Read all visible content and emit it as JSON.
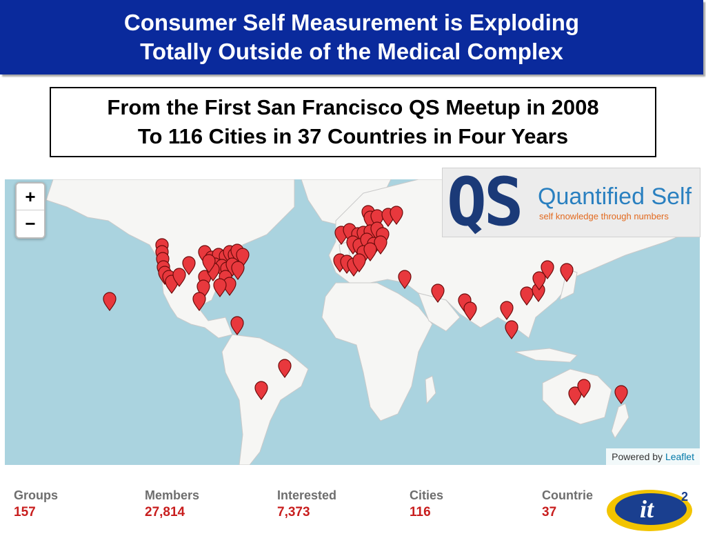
{
  "header": {
    "line1": "Consumer Self Measurement is Exploding",
    "line2": "Totally Outside of the Medical Complex"
  },
  "subtitle": {
    "line1": "From the First San Francisco QS Meetup in 2008",
    "line2": "To 116 Cities in 37 Countries in Four Years"
  },
  "map": {
    "zoom_in_label": "+",
    "zoom_out_label": "−",
    "attribution_prefix": "Powered by",
    "attribution_link": "Leaflet",
    "colors": {
      "ocean": "#aad3df",
      "land": "#f6f6f4",
      "marker": "#e8383d"
    }
  },
  "qs_logo": {
    "mark": "QS",
    "name": "Quantified Self",
    "tagline": "self knowledge through numbers"
  },
  "stats": [
    {
      "label": "Groups",
      "value": "157"
    },
    {
      "label": "Members",
      "value": "27,814"
    },
    {
      "label": "Interested",
      "value": "7,373"
    },
    {
      "label": "Cities",
      "value": "116"
    },
    {
      "label": "Countrie",
      "value": "37"
    }
  ],
  "it2_logo": {
    "text": "it",
    "superscript": "2"
  }
}
